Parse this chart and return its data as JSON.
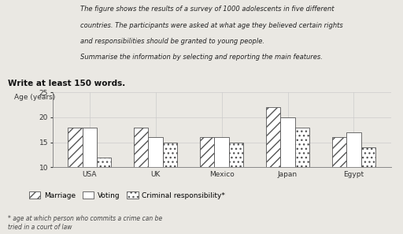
{
  "countries": [
    "USA",
    "UK",
    "Mexico",
    "Japan",
    "Egypt"
  ],
  "marriage": [
    18,
    18,
    16,
    22,
    16
  ],
  "voting": [
    18,
    16,
    16,
    20,
    17
  ],
  "criminal": [
    12,
    15,
    15,
    18,
    14
  ],
  "ylim": [
    10,
    25
  ],
  "yticks": [
    10,
    15,
    20,
    25
  ],
  "ylabel": "Age (years)",
  "bg_color": "#eae8e3",
  "bar_width": 0.22,
  "title_lines": [
    "The figure shows the results of a survey of 1000 adolescents in five different",
    "countries. The participants were asked at what age they believed certain rights",
    "and responsibilities should be granted to young people.",
    "Summarise the information by selecting and reporting the main features."
  ],
  "header_bold": "Write at least 150 words.",
  "footnote": "* age at which person who commits a crime can be\ntried in a court of law",
  "legend_labels": [
    "Marriage",
    "Voting",
    "Criminal responsibility*"
  ]
}
